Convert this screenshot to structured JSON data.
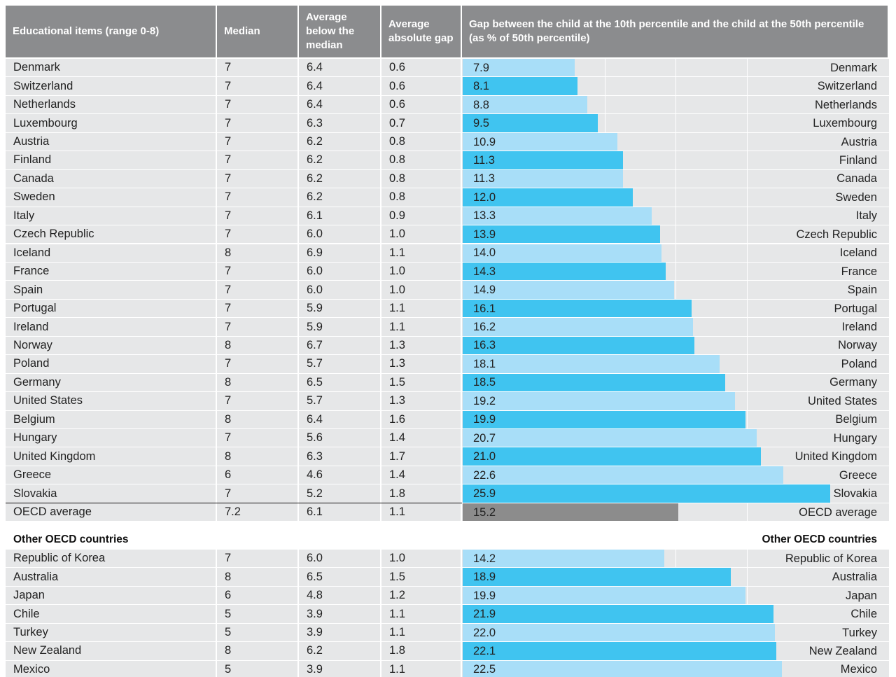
{
  "header": [
    "Educational items (range 0-8)",
    "Median",
    "Average below the median",
    "Average absolute gap",
    "Gap between the child at the 10th percentile and the child at the 50th percentile (as % of 50th percentile)"
  ],
  "rows": [
    [
      "Denmark",
      "7",
      "6.4",
      "0.6",
      "7.9"
    ],
    [
      "Switzerland",
      "7",
      "6.4",
      "0.6",
      "8.1"
    ],
    [
      "Netherlands",
      "7",
      "6.4",
      "0.6",
      "8.8"
    ],
    [
      "Luxembourg",
      "7",
      "6.3",
      "0.7",
      "9.5"
    ],
    [
      "Austria",
      "7",
      "6.2",
      "0.8",
      "10.9"
    ],
    [
      "Finland",
      "7",
      "6.2",
      "0.8",
      "11.3"
    ],
    [
      "Canada",
      "7",
      "6.2",
      "0.8",
      "11.3"
    ],
    [
      "Sweden",
      "7",
      "6.2",
      "0.8",
      "12.0"
    ],
    [
      "Italy",
      "7",
      "6.1",
      "0.9",
      "13.3"
    ],
    [
      "Czech Republic",
      "7",
      "6.0",
      "1.0",
      "13.9"
    ],
    [
      "Iceland",
      "8",
      "6.9",
      "1.1",
      "14.0"
    ],
    [
      "France",
      "7",
      "6.0",
      "1.0",
      "14.3"
    ],
    [
      "Spain",
      "7",
      "6.0",
      "1.0",
      "14.9"
    ],
    [
      "Portugal",
      "7",
      "5.9",
      "1.1",
      "16.1"
    ],
    [
      "Ireland",
      "7",
      "5.9",
      "1.1",
      "16.2"
    ],
    [
      "Norway",
      "8",
      "6.7",
      "1.3",
      "16.3"
    ],
    [
      "Poland",
      "7",
      "5.7",
      "1.3",
      "18.1"
    ],
    [
      "Germany",
      "8",
      "6.5",
      "1.5",
      "18.5"
    ],
    [
      "United States",
      "7",
      "5.7",
      "1.3",
      "19.2"
    ],
    [
      "Belgium",
      "8",
      "6.4",
      "1.6",
      "19.9"
    ],
    [
      "Hungary",
      "7",
      "5.6",
      "1.4",
      "20.7"
    ],
    [
      "United Kingdom",
      "8",
      "6.3",
      "1.7",
      "21.0"
    ],
    [
      "Greece",
      "6",
      "4.6",
      "1.4",
      "22.6"
    ],
    [
      "Slovakia",
      "7",
      "5.2",
      "1.8",
      "25.9"
    ]
  ],
  "average": [
    "OECD average",
    "7.2",
    "6.1",
    "1.1",
    "15.2"
  ],
  "other_title": "Other OECD countries",
  "other_rows": [
    [
      "Republic of Korea",
      "7",
      "6.0",
      "1.0",
      "14.2"
    ],
    [
      "Australia",
      "8",
      "6.5",
      "1.5",
      "18.9"
    ],
    [
      "Japan",
      "6",
      "4.8",
      "1.2",
      "19.9"
    ],
    [
      "Chile",
      "5",
      "3.9",
      "1.1",
      "21.9"
    ],
    [
      "Turkey",
      "5",
      "3.9",
      "1.1",
      "22.0"
    ],
    [
      "New Zealand",
      "8",
      "6.2",
      "1.8",
      "22.1"
    ],
    [
      "Mexico",
      "5",
      "3.9",
      "1.1",
      "22.5"
    ]
  ],
  "grid": [
    10,
    15,
    20
  ]
}
